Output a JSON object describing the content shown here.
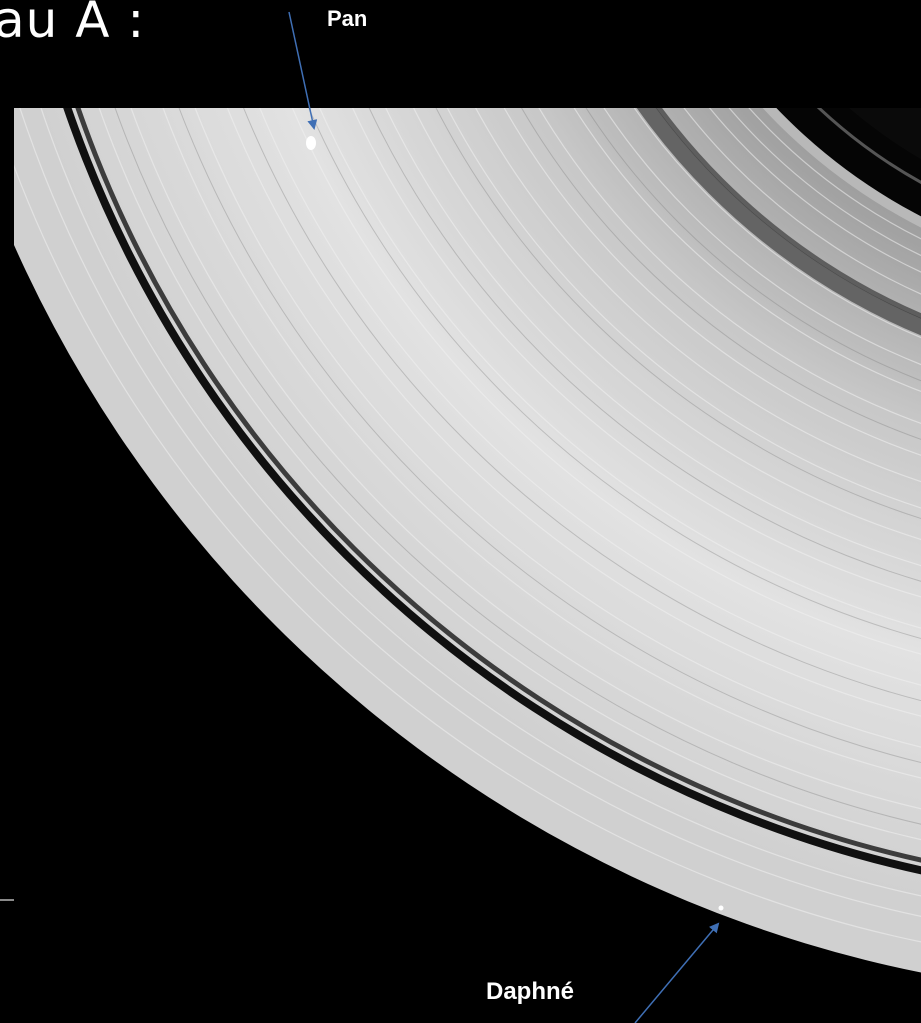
{
  "slide": {
    "title": "au A :",
    "background": "#000000"
  },
  "photo": {
    "subject": "ring-photograph",
    "background": "#000000",
    "ring_color": "#d8d8d8"
  },
  "annotations": {
    "pan": {
      "label": "Pan",
      "arrow_color": "#3f6fb5"
    },
    "daphnis": {
      "label": "Daphné",
      "arrow_color": "#3f6fb5"
    }
  }
}
